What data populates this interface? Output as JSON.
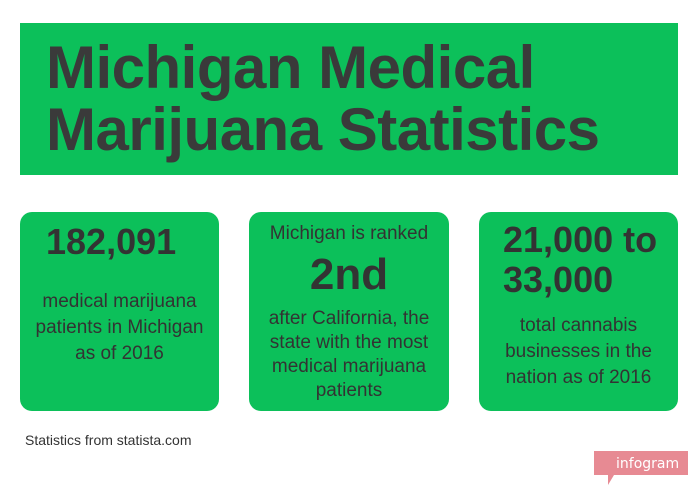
{
  "banner": {
    "title": "Michigan Medical\nMarijuana Statistics"
  },
  "cards": [
    {
      "value": "182,091",
      "description": "medical marijuana patients in Michigan as of 2016"
    },
    {
      "lead": "Michigan is ranked",
      "value": "2nd",
      "description": "after California, the state with the most medical marijuana patients"
    },
    {
      "value": "21,000 to\n33,000",
      "description": "total cannabis businesses in the nation as of 2016"
    }
  ],
  "footer": {
    "source": "Statistics from statista.com",
    "brand": "infogram"
  },
  "colors": {
    "green": "#0cc05a",
    "text": "#3a3a3a",
    "badge": "#e78a93"
  }
}
